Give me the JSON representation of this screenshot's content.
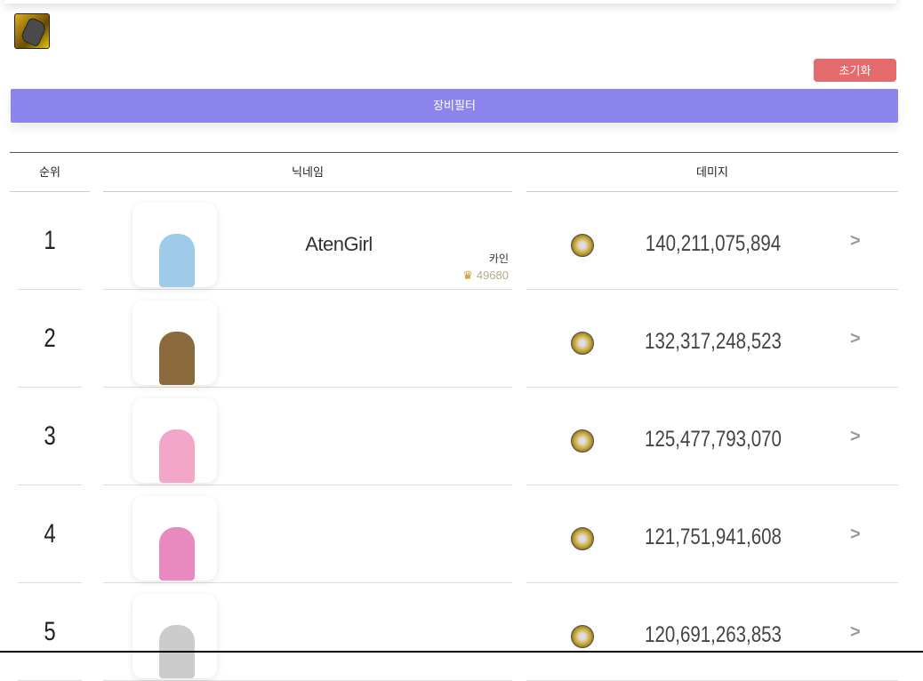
{
  "header": {
    "reset_label": "초기화",
    "filter_label": "장비필터",
    "equipment_icon": "gauntlet-icon"
  },
  "table": {
    "columns": [
      "순위",
      "닉네임",
      "데미지"
    ],
    "rows": [
      {
        "rank": "1",
        "name": "AtenGirl",
        "job": "카인",
        "fame": "49680",
        "damage": "140,211,075,894",
        "color": "#9ecbe8"
      },
      {
        "rank": "2",
        "name": "",
        "job": "",
        "fame": "",
        "damage": "132,317,248,523",
        "color": "#8a6a3a"
      },
      {
        "rank": "3",
        "name": "",
        "job": "",
        "fame": "",
        "damage": "125,477,793,070",
        "color": "#f2a6c8"
      },
      {
        "rank": "4",
        "name": "",
        "job": "",
        "fame": "",
        "damage": "121,751,941,608",
        "color": "#e88ac0"
      },
      {
        "rank": "5",
        "name": "",
        "job": "",
        "fame": "",
        "damage": "120,691,263,853",
        "color": "#ccc"
      }
    ]
  },
  "colors": {
    "reset": "#e46b6b",
    "filter": "#8b84ea"
  }
}
